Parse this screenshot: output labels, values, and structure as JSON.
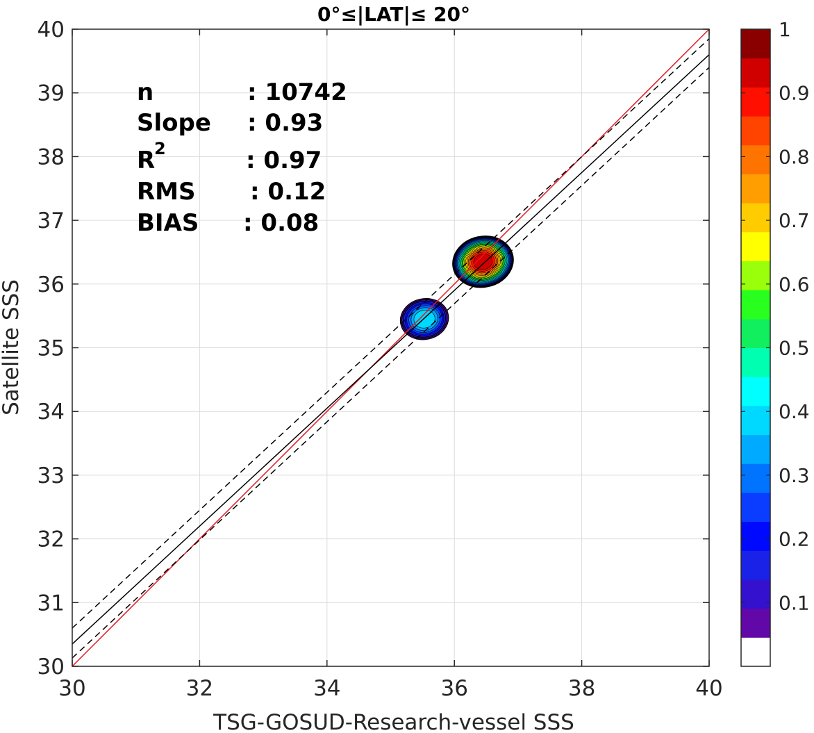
{
  "chart_data": {
    "type": "contour",
    "title": "0°≤|LAT|≤ 20°",
    "xlabel": "TSG-GOSUD-Research-vessel SSS",
    "ylabel": "Satellite SSS",
    "xlim": [
      30,
      40
    ],
    "ylim": [
      30,
      40
    ],
    "xticks": [
      "30",
      "32",
      "34",
      "36",
      "38",
      "40"
    ],
    "yticks": [
      "30",
      "31",
      "32",
      "33",
      "34",
      "35",
      "36",
      "37",
      "38",
      "39",
      "40"
    ],
    "grid": true,
    "stats": {
      "n_label": "n",
      "n_value": ": 10742",
      "slope_label": "Slope",
      "slope_value": ": 0.93",
      "r2_label": "R",
      "r2_sup": "2",
      "r2_value": ": 0.97",
      "rms_label": "RMS",
      "rms_value": ": 0.12",
      "bias_label": "BIAS",
      "bias_value": ": 0.08"
    },
    "lines": [
      {
        "role": "one-to-one",
        "color": "#e8141c",
        "dash": false,
        "points": [
          [
            30,
            30
          ],
          [
            40,
            40
          ]
        ]
      },
      {
        "role": "regression",
        "color": "#000000",
        "dash": false,
        "points": [
          [
            30,
            30.35
          ],
          [
            40,
            39.6
          ]
        ]
      },
      {
        "role": "regression-plus",
        "color": "#000000",
        "dash": true,
        "points": [
          [
            30,
            30.6
          ],
          [
            40,
            39.85
          ]
        ]
      },
      {
        "role": "regression-minus",
        "color": "#000000",
        "dash": true,
        "points": [
          [
            30,
            30.13
          ],
          [
            40,
            39.4
          ]
        ]
      }
    ],
    "clusters": [
      {
        "center": [
          36.45,
          36.35
        ],
        "rx": 0.48,
        "ry": 0.4,
        "peak": 0.97
      },
      {
        "center": [
          35.53,
          35.45
        ],
        "rx": 0.38,
        "ry": 0.32,
        "peak": 0.4
      }
    ],
    "colorbar": {
      "range": [
        0,
        1
      ],
      "ticks": [
        "0.1",
        "0.2",
        "0.3",
        "0.4",
        "0.5",
        "0.6",
        "0.7",
        "0.8",
        "0.9",
        "1"
      ],
      "colors": [
        "#ffffff",
        "#6207a8",
        "#3411cf",
        "#1a22e8",
        "#0009ff",
        "#0a3dff",
        "#0073ff",
        "#00aaff",
        "#00d9ff",
        "#00ffff",
        "#00ffb0",
        "#12ef5e",
        "#28ff1e",
        "#99ff0a",
        "#ffff00",
        "#ffcc00",
        "#ff9e00",
        "#ff7400",
        "#ff4400",
        "#ff0f00",
        "#d10000",
        "#8a0000"
      ]
    }
  }
}
